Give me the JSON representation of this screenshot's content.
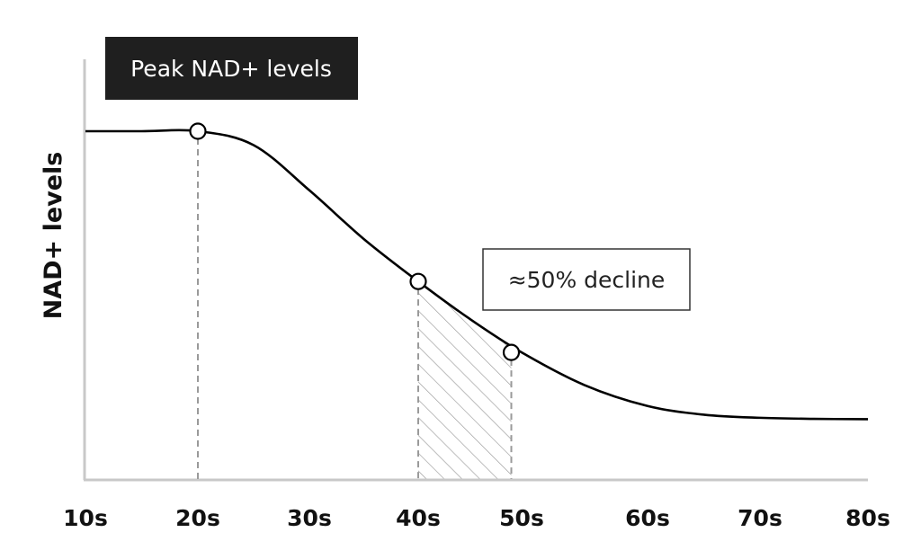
{
  "chart_data": {
    "type": "line",
    "title": "",
    "xlabel": "",
    "ylabel": "NAD+ levels",
    "x_tick_labels": [
      "10s",
      "20s",
      "30s",
      "40s",
      "50s",
      "60s",
      "70s",
      "80s"
    ],
    "x_ticks": [
      10,
      20,
      30,
      40,
      50,
      60,
      70,
      80
    ],
    "xlim": [
      10,
      80
    ],
    "ylim": [
      0,
      100
    ],
    "y_ticks_shown": false,
    "grid": false,
    "series": [
      {
        "x": [
          10,
          15,
          20,
          25,
          30,
          35,
          40,
          45,
          50,
          55,
          60,
          65,
          70,
          75,
          80
        ],
        "y": [
          100,
          100,
          100,
          96,
          83,
          69,
          56.8,
          46,
          36.4,
          27,
          21,
          18.5,
          17.6,
          17.3,
          17.2
        ],
        "color": "#000000"
      }
    ],
    "markers": [
      {
        "x": 20,
        "y": 100
      },
      {
        "x": 40,
        "y": 56.8
      },
      {
        "x": 49,
        "y": 36.4
      }
    ],
    "annotations": [
      {
        "text": "Peak NAD+ levels",
        "style": "dark-box"
      },
      {
        "text": "≈50% decline",
        "style": "outlined-box"
      }
    ],
    "shaded_range": {
      "x": [
        40,
        49
      ],
      "pattern": "hatch"
    },
    "colors": {
      "line": "#000000",
      "axis": "#c8c8c8",
      "guide": "#9a9a9a",
      "label_box": "#1f1f1f"
    }
  }
}
